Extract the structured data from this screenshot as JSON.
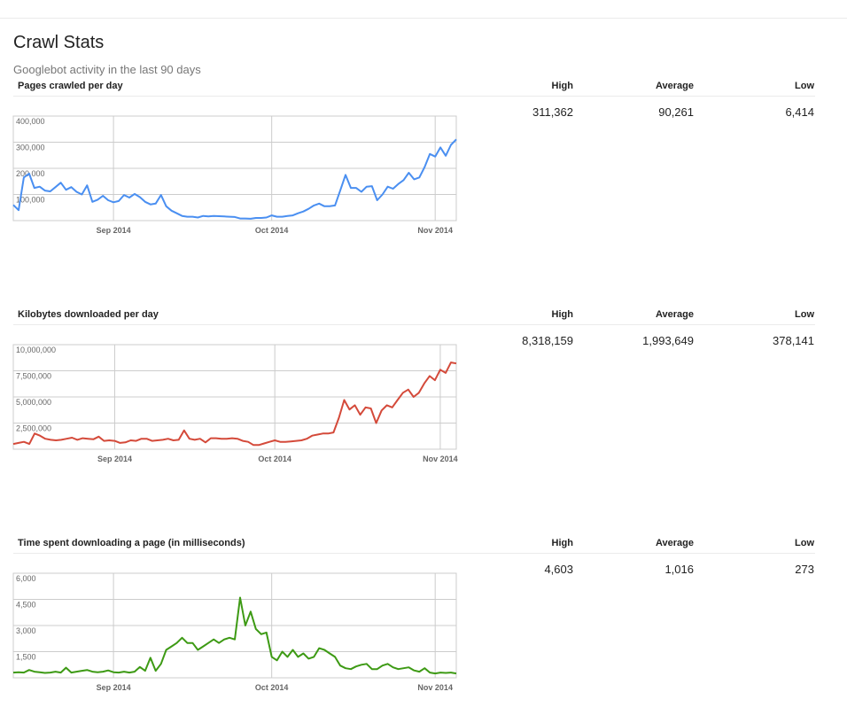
{
  "header": {
    "title": "Crawl Stats",
    "subtitle": "Googlebot activity in the last 90 days"
  },
  "columns": {
    "high": "High",
    "average": "Average",
    "low": "Low"
  },
  "sections": [
    {
      "title": "Pages crawled per day",
      "stats": {
        "high": "311,362",
        "average": "90,261",
        "low": "6,414"
      }
    },
    {
      "title": "Kilobytes downloaded per day",
      "stats": {
        "high": "8,318,159",
        "average": "1,993,649",
        "low": "378,141"
      }
    },
    {
      "title": "Time spent downloading a page (in milliseconds)",
      "stats": {
        "high": "4,603",
        "average": "1,016",
        "low": "273"
      }
    }
  ],
  "chart_data": [
    {
      "type": "line",
      "color": "#4a8ff1",
      "ylim": [
        0,
        400000
      ],
      "yticks": [
        "100,000",
        "200,000",
        "300,000",
        "400,000"
      ],
      "ytick_values": [
        100000,
        200000,
        300000,
        400000
      ],
      "xticks": [
        "Sep 2014",
        "Oct 2014",
        "Nov 2014"
      ],
      "xtick_index": [
        19,
        49,
        80
      ],
      "grid": true,
      "values": [
        60000,
        40000,
        165000,
        180000,
        125000,
        130000,
        115000,
        112000,
        128000,
        145000,
        118000,
        128000,
        110000,
        100000,
        135000,
        72000,
        80000,
        95000,
        78000,
        70000,
        75000,
        98000,
        88000,
        102000,
        90000,
        72000,
        62000,
        65000,
        98000,
        55000,
        38000,
        28000,
        18000,
        15000,
        15000,
        12000,
        18000,
        16000,
        18000,
        17000,
        16000,
        15000,
        14000,
        8000,
        8000,
        7000,
        10000,
        10000,
        12000,
        20000,
        15000,
        15000,
        18000,
        20000,
        28000,
        35000,
        45000,
        58000,
        65000,
        55000,
        55000,
        58000,
        115000,
        175000,
        125000,
        125000,
        110000,
        130000,
        132000,
        78000,
        100000,
        130000,
        122000,
        140000,
        155000,
        183000,
        158000,
        165000,
        205000,
        255000,
        245000,
        280000,
        248000,
        290000,
        311000
      ]
    },
    {
      "type": "line",
      "color": "#d44a3a",
      "ylim": [
        0,
        10000000
      ],
      "yticks": [
        "2,500,000",
        "5,000,000",
        "7,500,000",
        "10,000,000"
      ],
      "ytick_values": [
        2500000,
        5000000,
        7500000,
        10000000
      ],
      "xticks": [
        "Sep 2014",
        "Oct 2014",
        "Nov 2014"
      ],
      "xtick_index": [
        19,
        49,
        80
      ],
      "grid": true,
      "values": [
        500000,
        600000,
        700000,
        500000,
        1500000,
        1300000,
        1000000,
        900000,
        850000,
        900000,
        1000000,
        1100000,
        900000,
        1050000,
        1000000,
        950000,
        1200000,
        800000,
        850000,
        800000,
        600000,
        650000,
        850000,
        800000,
        1000000,
        1000000,
        800000,
        850000,
        900000,
        1000000,
        850000,
        900000,
        1800000,
        1000000,
        900000,
        1000000,
        650000,
        1050000,
        1050000,
        1000000,
        1000000,
        1050000,
        1000000,
        800000,
        700000,
        400000,
        400000,
        550000,
        700000,
        850000,
        700000,
        700000,
        750000,
        800000,
        850000,
        1000000,
        1300000,
        1400000,
        1500000,
        1500000,
        1600000,
        3000000,
        4700000,
        3800000,
        4200000,
        3300000,
        4000000,
        3900000,
        2500000,
        3700000,
        4200000,
        4000000,
        4700000,
        5400000,
        5700000,
        5000000,
        5400000,
        6300000,
        7000000,
        6600000,
        7600000,
        7300000,
        8300000,
        8200000
      ]
    },
    {
      "type": "line",
      "color": "#3d9a14",
      "ylim": [
        0,
        6000
      ],
      "yticks": [
        "1,500",
        "3,000",
        "4,500",
        "6,000"
      ],
      "ytick_values": [
        1500,
        3000,
        4500,
        6000
      ],
      "xticks": [
        "Sep 2014",
        "Oct 2014",
        "Nov 2014"
      ],
      "xtick_index": [
        19,
        49,
        80
      ],
      "grid": true,
      "values": [
        300,
        320,
        300,
        450,
        350,
        320,
        280,
        300,
        350,
        300,
        580,
        300,
        350,
        400,
        450,
        350,
        320,
        350,
        420,
        320,
        300,
        350,
        300,
        350,
        620,
        400,
        1150,
        400,
        800,
        1600,
        1800,
        2000,
        2300,
        2000,
        2000,
        1600,
        1800,
        2000,
        2200,
        2000,
        2200,
        2300,
        2200,
        4600,
        3000,
        3800,
        2800,
        2500,
        2600,
        1200,
        1000,
        1500,
        1200,
        1600,
        1200,
        1400,
        1100,
        1200,
        1700,
        1600,
        1400,
        1200,
        700,
        550,
        500,
        650,
        750,
        800,
        500,
        500,
        700,
        800,
        600,
        500,
        550,
        600,
        420,
        350,
        550,
        300,
        250,
        300,
        280,
        300,
        250
      ]
    }
  ]
}
